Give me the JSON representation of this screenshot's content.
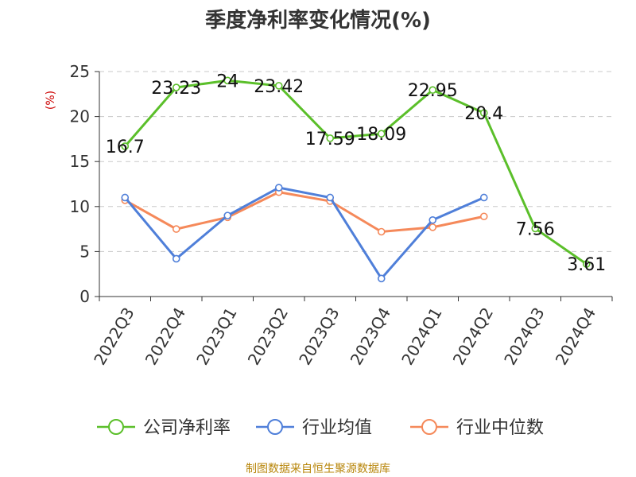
{
  "chart_data": {
    "type": "line",
    "title": "季度净利率变化情况(%)",
    "ylabel": "(%)",
    "ylim": [
      0,
      25
    ],
    "yticks": [
      0,
      5,
      10,
      15,
      20,
      25
    ],
    "grid": true,
    "legend_position": "bottom",
    "categories": [
      "2022Q3",
      "2022Q4",
      "2023Q1",
      "2023Q2",
      "2023Q3",
      "2023Q4",
      "2024Q1",
      "2024Q2",
      "2024Q3",
      "2024Q4"
    ],
    "series": [
      {
        "name": "公司净利率",
        "color": "#5bbf2a",
        "show_labels": true,
        "values": [
          16.7,
          23.23,
          24,
          23.42,
          17.59,
          18.09,
          22.95,
          20.4,
          7.56,
          3.61
        ]
      },
      {
        "name": "行业均值",
        "color": "#4f7fd9",
        "show_labels": false,
        "values": [
          11.0,
          4.2,
          9.0,
          12.1,
          11.0,
          2.0,
          8.5,
          11.0,
          null,
          null
        ]
      },
      {
        "name": "行业中位数",
        "color": "#f5895a",
        "show_labels": false,
        "values": [
          10.7,
          7.5,
          8.8,
          11.6,
          10.6,
          7.2,
          7.7,
          8.9,
          null,
          null
        ]
      }
    ]
  },
  "source": "制图数据来自恒生聚源数据库"
}
